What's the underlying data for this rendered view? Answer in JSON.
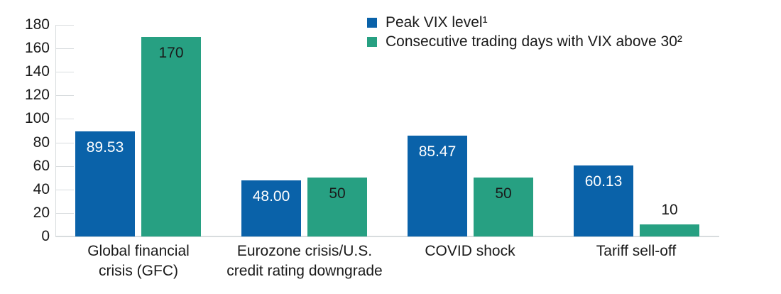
{
  "chart_data": {
    "type": "bar",
    "categories": [
      "Global financial\ncrisis (GFC)",
      "Eurozone crisis/U.S.\ncredit rating downgrade",
      "COVID shock",
      "Tariff sell-off"
    ],
    "series": [
      {
        "key": "peak-vix-level",
        "name": "Peak VIX level¹",
        "color": "#0a62a9",
        "label_color": "#ffffff",
        "values": [
          89.53,
          48.0,
          85.47,
          60.13
        ],
        "value_labels": [
          "89.53",
          "48.00",
          "85.47",
          "60.13"
        ]
      },
      {
        "key": "days-vix-above-30",
        "name": "Consecutive trading days with VIX above 30²",
        "color": "#27a082",
        "label_color": "#1a1a1a",
        "values": [
          170,
          50,
          50,
          10
        ],
        "value_labels": [
          "170",
          "50",
          "50",
          "10"
        ]
      }
    ],
    "ylim": [
      0,
      180
    ],
    "yticks": [
      0,
      20,
      40,
      60,
      80,
      100,
      120,
      140,
      160,
      180
    ],
    "ytick_labels": [
      "0",
      "20",
      "40",
      "60",
      "80",
      "100",
      "120",
      "140",
      "160",
      "180"
    ],
    "grid": "ticks-only",
    "legend_position": "top-center",
    "axis_color": "#d8dcde",
    "text_color": "#1a1a1a",
    "background_color": "#ffffff"
  }
}
